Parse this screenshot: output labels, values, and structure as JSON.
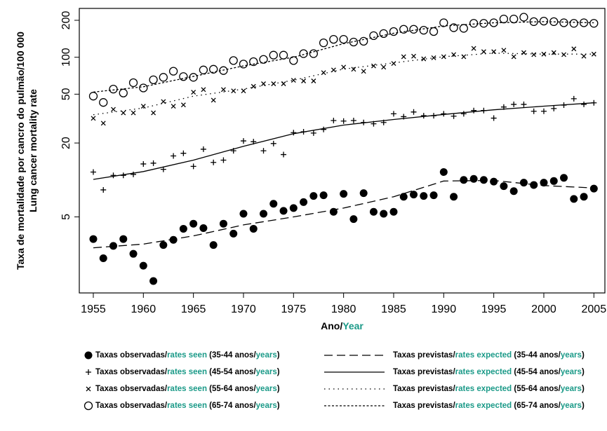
{
  "chart_data": {
    "type": "scatter-line",
    "y_label": [
      [
        "Taxa de mortalidade por cancro do pulmão/100 000"
      ],
      [
        "Lung cancer mortality rate"
      ]
    ],
    "x_label": [
      "Ano/",
      "Year"
    ],
    "accent_color": "#1b9a88",
    "log_y": true,
    "xlim": [
      1953.6,
      2006.1
    ],
    "xticks": [
      1955,
      1960,
      1965,
      1970,
      1975,
      1980,
      1985,
      1990,
      1995,
      2000,
      2005
    ],
    "ylim": [
      1.2,
      250
    ],
    "yticks": [
      5,
      20,
      50,
      100,
      200
    ],
    "x": [
      1955,
      1956,
      1957,
      1958,
      1959,
      1960,
      1961,
      1962,
      1963,
      1964,
      1965,
      1966,
      1967,
      1968,
      1969,
      1970,
      1971,
      1972,
      1973,
      1974,
      1975,
      1976,
      1977,
      1978,
      1979,
      1980,
      1981,
      1982,
      1983,
      1984,
      1985,
      1986,
      1987,
      1988,
      1989,
      1990,
      1991,
      1992,
      1993,
      1994,
      1995,
      1996,
      1997,
      1998,
      1999,
      2000,
      2001,
      2002,
      2003,
      2004,
      2005
    ],
    "series": [
      {
        "name": [
          "Taxas observadas/",
          "rates seen",
          " (35-44 anos/",
          "years",
          ")"
        ],
        "color": "#000000",
        "marker": "filled-circle",
        "values": [
          3.3,
          2.3,
          2.9,
          3.3,
          2.5,
          2.0,
          1.5,
          2.95,
          3.25,
          4.0,
          4.4,
          4.05,
          2.95,
          4.4,
          3.65,
          5.3,
          4.0,
          5.3,
          6.4,
          5.6,
          5.9,
          6.6,
          7.4,
          7.5,
          5.5,
          7.7,
          4.8,
          7.8,
          5.5,
          5.3,
          5.5,
          7.3,
          7.6,
          7.4,
          7.5,
          11.6,
          7.3,
          10.0,
          10.2,
          10.0,
          9.7,
          8.9,
          8.1,
          9.5,
          9.1,
          9.5,
          9.8,
          10.4,
          7.0,
          7.3,
          8.5
        ]
      },
      {
        "name": [
          "Taxas previstas/",
          "rates expected",
          " (35-44 anos/",
          "years",
          ")"
        ],
        "color": "#000000",
        "line_style": "dashed",
        "x": [
          1955,
          1960,
          1965,
          1970,
          1975,
          1980,
          1985,
          1990,
          1995,
          2000,
          2005
        ],
        "values": [
          2.8,
          3.0,
          3.5,
          4.3,
          5.0,
          5.9,
          7.3,
          9.8,
          9.9,
          9.0,
          8.6
        ]
      },
      {
        "name": [
          "Taxas observadas/",
          "rates seen",
          " (45-54 anos/",
          "years",
          ")"
        ],
        "color": "#000000",
        "marker": "plus",
        "values": [
          11.6,
          8.3,
          10.9,
          10.9,
          11.1,
          13.5,
          13.7,
          12.2,
          15.7,
          16.5,
          12.9,
          17.8,
          13.9,
          14.5,
          17.3,
          20.8,
          20.5,
          17.3,
          19.8,
          16.1,
          24.3,
          24.7,
          24.1,
          25.8,
          30.5,
          30.2,
          30.5,
          29.4,
          28.7,
          29.4,
          34.6,
          32.8,
          35.8,
          33.4,
          33.4,
          34.6,
          33.1,
          34.6,
          36.8,
          36.8,
          31.9,
          39.3,
          41.3,
          41.3,
          36.3,
          36.3,
          38.2,
          40.7,
          45.9,
          41.3,
          42.5
        ]
      },
      {
        "name": [
          "Taxas previstas/",
          "rates expected",
          " (45-54 anos/",
          "years",
          ")"
        ],
        "color": "#000000",
        "line_style": "solid",
        "x": [
          1955,
          1960,
          1965,
          1970,
          1975,
          1980,
          1985,
          1990,
          1995,
          2000,
          2005
        ],
        "values": [
          10.1,
          11.7,
          14.5,
          18.8,
          23.8,
          28.0,
          31.1,
          34.2,
          37.3,
          39.9,
          42.5
        ]
      },
      {
        "name": [
          "Taxas observadas/",
          "rates seen",
          " (55-64 anos/",
          "years",
          ")"
        ],
        "color": "#000000",
        "marker": "cross",
        "values": [
          31.8,
          29.0,
          37.6,
          35.2,
          35.2,
          39.9,
          35.2,
          43.5,
          39.9,
          40.9,
          51.9,
          54.5,
          44.7,
          54.5,
          53.2,
          53.2,
          57.9,
          60.8,
          60.8,
          60.8,
          64.9,
          64.1,
          64.1,
          74.9,
          78.8,
          83.0,
          79.8,
          76.9,
          85.0,
          83.0,
          89,
          101,
          102,
          97,
          99,
          101,
          105,
          101,
          118,
          111,
          111,
          114,
          101,
          109,
          105,
          106,
          109,
          105,
          117,
          102,
          106
        ]
      },
      {
        "name": [
          "Taxas previstas/",
          "rates expected",
          " (55-64 anos/",
          "years",
          ")"
        ],
        "color": "#000000",
        "line_style": "dotted",
        "x": [
          1955,
          1960,
          1965,
          1970,
          1975,
          1980,
          1985,
          1990,
          1995,
          2000,
          2005
        ],
        "values": [
          34.0,
          38.6,
          48.2,
          55.0,
          65,
          80,
          90,
          101,
          108,
          106,
          106
        ]
      },
      {
        "name": [
          "Taxas observadas/",
          "rates seen",
          " (65-74 anos/",
          "years",
          ")"
        ],
        "color": "#000000",
        "marker": "circle",
        "values": [
          48.2,
          42.8,
          55,
          51.1,
          62,
          56.2,
          65.5,
          68.6,
          76.9,
          69.6,
          68.6,
          78.8,
          79.8,
          77.9,
          94,
          88,
          92,
          96,
          104,
          104,
          94,
          107,
          107,
          131,
          140,
          140,
          133,
          135,
          150,
          156,
          162,
          169,
          169,
          166,
          162,
          191,
          174,
          172,
          189,
          189,
          191,
          205,
          205,
          212,
          195,
          197,
          195,
          191,
          189,
          191,
          189
        ]
      },
      {
        "name": [
          "Taxas previstas/",
          "rates expected",
          " (65-74 anos/",
          "years",
          ")"
        ],
        "color": "#000000",
        "line_style": "fine-dashed",
        "x": [
          1955,
          1960,
          1965,
          1970,
          1975,
          1980,
          1985,
          1990,
          1995,
          2000,
          2005
        ],
        "values": [
          52,
          57.5,
          69.8,
          85,
          100,
          129,
          157,
          180,
          191,
          195,
          191
        ]
      }
    ]
  }
}
